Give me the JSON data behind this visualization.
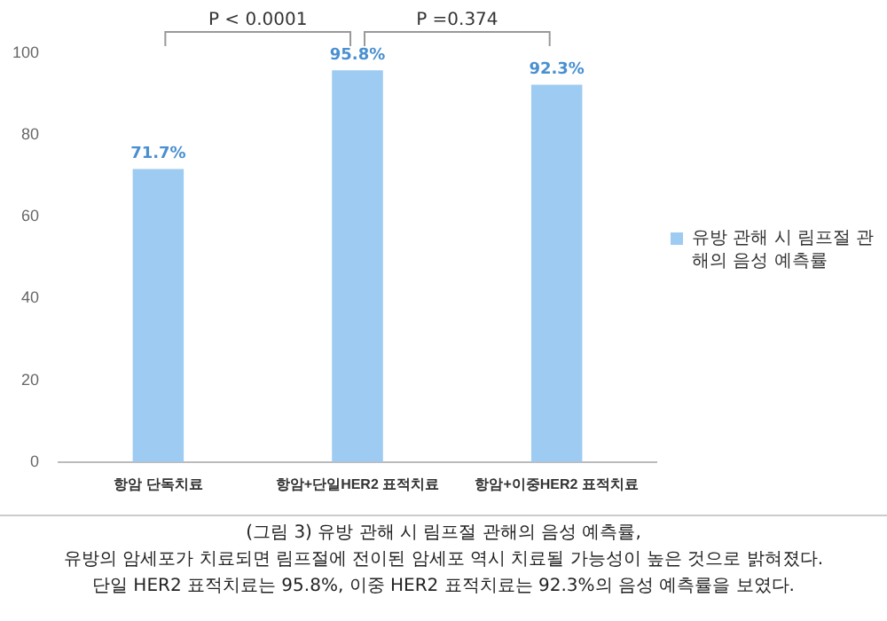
{
  "chart_data": {
    "type": "bar",
    "categories": [
      "항암 단독치료",
      "항암+단일HER2 표적치료",
      "항암+이중HER2 표적치료"
    ],
    "series": [
      {
        "name": "유방 관해 시 림프절 관해의 음성 예측률",
        "color": "#9dcbf2",
        "values": [
          71.7,
          95.8,
          92.3
        ],
        "value_labels": [
          "71.7%",
          "95.8%",
          "92.3%"
        ]
      }
    ],
    "ylim": [
      0,
      100
    ],
    "yticks": [
      0,
      20,
      40,
      60,
      80,
      100
    ],
    "grid": false,
    "legend": "right",
    "annotations": [
      "P < 0.0001",
      "P =0.374",
      "(그림 3) 유방 관해 시 림프절 관해의 음성 예측률,\n유방의 암세포가 치료되면 림프절에 전이된 암세포 역시 치료될 가능성이 높은 것으로 밝혀졌다.\n단일 HER2 표적치료는 95.8%, 이중 HER2 표적치료는 92.3%의 음성 예측률을 보였다."
    ]
  }
}
